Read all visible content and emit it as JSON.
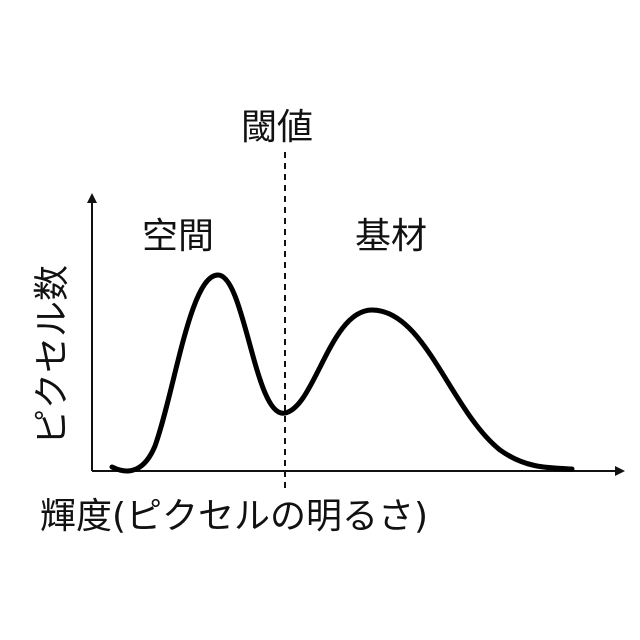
{
  "labels": {
    "threshold": "閾値",
    "void": "空間",
    "substrate": "基材",
    "y_axis": "ピクセル数",
    "x_axis": "輝度(ピクセルの明るさ)"
  },
  "colors": {
    "curve": "#000000",
    "axis": "#111111"
  },
  "diagram": {
    "type": "bimodal-histogram",
    "peaks": [
      "void",
      "substrate"
    ],
    "threshold_between_peaks": true
  }
}
